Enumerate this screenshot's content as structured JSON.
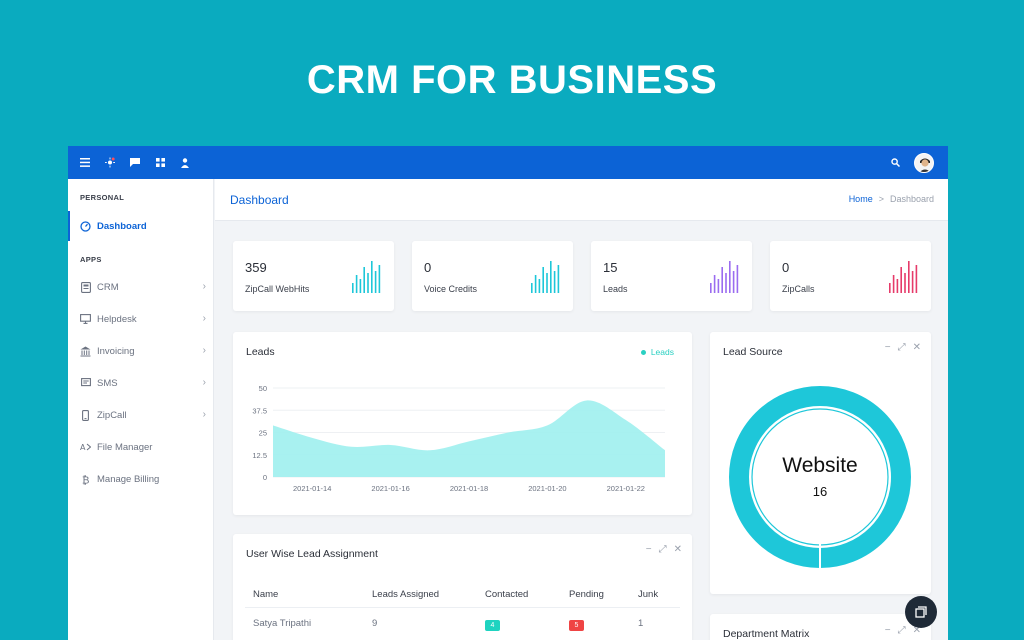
{
  "banner": {
    "title": "CRM FOR BUSINESS"
  },
  "topbar": {
    "icons": [
      "menu-icon",
      "sun-icon",
      "chat-icon",
      "grid-icon",
      "user-icon"
    ],
    "right_icons": [
      "search-icon",
      "avatar"
    ]
  },
  "sidebar": {
    "section_personal": "PERSONAL",
    "section_apps": "APPS",
    "items": [
      {
        "label": "Dashboard",
        "icon": "dashboard-icon",
        "active": true
      },
      {
        "label": "CRM",
        "icon": "crm-icon",
        "chevron": true
      },
      {
        "label": "Helpdesk",
        "icon": "monitor-icon",
        "chevron": true
      },
      {
        "label": "Invoicing",
        "icon": "bank-icon",
        "chevron": true
      },
      {
        "label": "SMS",
        "icon": "message-icon",
        "chevron": true
      },
      {
        "label": "ZipCall",
        "icon": "phone-icon",
        "chevron": true
      },
      {
        "label": "File Manager",
        "icon": "file-icon"
      },
      {
        "label": "Manage Billing",
        "icon": "billing-icon"
      }
    ]
  },
  "header": {
    "title": "Dashboard",
    "breadcrumb": {
      "home": "Home",
      "sep": ">",
      "current": "Dashboard"
    }
  },
  "stats": [
    {
      "value": "359",
      "label": "ZipCall WebHits",
      "color": "#1ec7d9"
    },
    {
      "value": "0",
      "label": "Voice Credits",
      "color": "#1ec7d9"
    },
    {
      "value": "15",
      "label": "Leads",
      "color": "#9b6cf0"
    },
    {
      "value": "0",
      "label": "ZipCalls",
      "color": "#e63b6a"
    }
  ],
  "leads_card": {
    "title": "Leads",
    "legend": "Leads"
  },
  "chart_data": {
    "type": "area",
    "title": "Leads",
    "series": [
      {
        "name": "Leads",
        "color": "#9ef0ee"
      }
    ],
    "x": [
      "2021-01-13",
      "2021-01-14",
      "2021-01-15",
      "2021-01-16",
      "2021-01-17",
      "2021-01-18",
      "2021-01-19",
      "2021-01-20",
      "2021-01-21",
      "2021-01-22",
      "2021-01-23"
    ],
    "values": [
      29,
      22,
      17,
      18,
      15,
      20,
      25,
      29,
      43,
      32,
      15
    ],
    "x_ticks": [
      "2021-01-14",
      "2021-01-16",
      "2021-01-18",
      "2021-01-20",
      "2021-01-22"
    ],
    "y_ticks": [
      "0",
      "12.5",
      "25",
      "37.5",
      "50"
    ],
    "ylim": [
      0,
      50
    ],
    "grid": true
  },
  "lead_source": {
    "title": "Lead Source",
    "center_label": "Website",
    "center_value": "16",
    "ring_color": "#1ec7d9",
    "controls": [
      "−",
      "⤢",
      "✕"
    ]
  },
  "assignment": {
    "title": "User Wise Lead Assignment",
    "controls": [
      "−",
      "⤢",
      "✕"
    ],
    "columns": [
      "Name",
      "Leads Assigned",
      "Contacted",
      "Pending",
      "Junk"
    ],
    "rows": [
      {
        "name": "Satya Tripathi",
        "assigned": "9",
        "contacted": "4",
        "pending": "5",
        "junk": "1"
      }
    ]
  },
  "dept": {
    "title": "Department Matrix",
    "controls": [
      "−",
      "⤢",
      "✕"
    ]
  }
}
